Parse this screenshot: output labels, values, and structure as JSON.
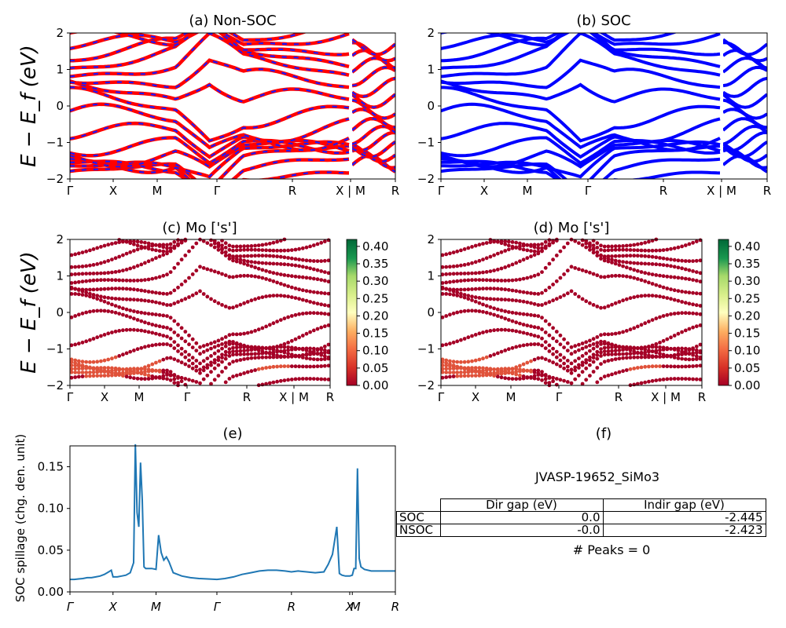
{
  "figure": {
    "panel_titles": {
      "a": "(a) Non-SOC",
      "b": "(b) SOC",
      "c": "(c)  Mo ['s']",
      "d": "(d) Mo ['s']",
      "e": "(e)",
      "f": "(f)"
    },
    "band_ylabel": "E − E_f (eV)",
    "spill_ylabel": "SOC spillage (chg. den. unit)",
    "band_yticks": [
      "2",
      "1",
      "0",
      "−1",
      "−2"
    ],
    "kpath_labels": [
      "Γ",
      "X",
      "M",
      "Γ",
      "R",
      "X | M",
      "R"
    ],
    "spill_kpath_labels": [
      "Γ",
      "X",
      "M",
      "Γ",
      "R",
      "X",
      "M",
      "R"
    ],
    "spill_yticks": [
      "0.15",
      "0.10",
      "0.05",
      "0.00"
    ],
    "colorbar_ticks": [
      "0.40",
      "0.35",
      "0.30",
      "0.25",
      "0.20",
      "0.15",
      "0.10",
      "0.05",
      "0.00"
    ],
    "colors": {
      "nonsoc_band": "#ff0000",
      "nonsoc_dash": "#1a1aff",
      "soc_band": "#0000ff",
      "spill_line": "#1f77b4"
    }
  },
  "info": {
    "material_id": "JVASP-19652_SiMo3",
    "table": {
      "headers": [
        "Dir gap (eV)",
        "Indir gap (eV)"
      ],
      "rows": [
        {
          "label": "SOC",
          "dir": "0.0",
          "indir": "-2.445"
        },
        {
          "label": "NSOC",
          "dir": "-0.0",
          "indir": "-2.423"
        }
      ]
    },
    "peaks_text": "# Peaks = 0"
  },
  "chart_data": [
    {
      "id": "a",
      "type": "line",
      "title": "(a) Non-SOC",
      "ylabel": "E − E_f (eV)",
      "ylim": [
        -2,
        2
      ],
      "xticks": [
        "Γ",
        "X",
        "M",
        "Γ",
        "R",
        "X | M",
        "R"
      ],
      "tick_positions": [
        0,
        0.5,
        1.0,
        1.707,
        2.573,
        3.28,
        3.78
      ]
    },
    {
      "id": "b",
      "type": "line",
      "title": "(b) SOC",
      "ylabel": "",
      "ylim": [
        -2,
        2
      ],
      "xticks": [
        "Γ",
        "X",
        "M",
        "Γ",
        "R",
        "X | M",
        "R"
      ],
      "tick_positions": [
        0,
        0.5,
        1.0,
        1.707,
        2.573,
        3.28,
        3.78
      ]
    },
    {
      "id": "c",
      "type": "scatter",
      "title": "(c)  Mo ['s']",
      "ylabel": "E − E_f (eV)",
      "ylim": [
        -2,
        2
      ],
      "colorbar_range": [
        0,
        0.42
      ],
      "xticks": [
        "Γ",
        "X",
        "M",
        "Γ",
        "R",
        "X | M",
        "R"
      ]
    },
    {
      "id": "d",
      "type": "scatter",
      "title": "(d) Mo ['s']",
      "ylabel": "",
      "ylim": [
        -2,
        2
      ],
      "colorbar_range": [
        0,
        0.42
      ],
      "xticks": [
        "Γ",
        "X",
        "M",
        "Γ",
        "R",
        "X | M",
        "R"
      ]
    },
    {
      "id": "e",
      "type": "line",
      "title": "(e)",
      "ylabel": "SOC spillage (chg. den. unit)",
      "ylim": [
        0,
        0.175
      ],
      "xticks": [
        "Γ",
        "X",
        "M",
        "Γ",
        "R",
        "X",
        "M",
        "R"
      ],
      "x": [
        0.0,
        0.05,
        0.1,
        0.15,
        0.2,
        0.25,
        0.3,
        0.35,
        0.4,
        0.45,
        0.48,
        0.5,
        0.55,
        0.6,
        0.65,
        0.7,
        0.74,
        0.76,
        0.78,
        0.8,
        0.82,
        0.84,
        0.86,
        0.88,
        0.9,
        0.95,
        1.0,
        1.03,
        1.06,
        1.09,
        1.12,
        1.15,
        1.2,
        1.3,
        1.4,
        1.5,
        1.6,
        1.707,
        1.8,
        1.9,
        2.0,
        2.1,
        2.2,
        2.3,
        2.4,
        2.5,
        2.573,
        2.65,
        2.75,
        2.85,
        2.95,
        3.0,
        3.05,
        3.1,
        3.13,
        3.16,
        3.2,
        3.25,
        3.28,
        3.3,
        3.32,
        3.34,
        3.36,
        3.38,
        3.42,
        3.5,
        3.6,
        3.7,
        3.78
      ],
      "y": [
        0.015,
        0.015,
        0.0155,
        0.016,
        0.017,
        0.017,
        0.018,
        0.019,
        0.021,
        0.024,
        0.026,
        0.018,
        0.018,
        0.019,
        0.02,
        0.023,
        0.035,
        0.177,
        0.095,
        0.078,
        0.155,
        0.11,
        0.03,
        0.028,
        0.028,
        0.028,
        0.027,
        0.068,
        0.047,
        0.038,
        0.042,
        0.036,
        0.023,
        0.019,
        0.017,
        0.016,
        0.0155,
        0.015,
        0.016,
        0.018,
        0.021,
        0.023,
        0.025,
        0.026,
        0.026,
        0.025,
        0.024,
        0.025,
        0.024,
        0.023,
        0.024,
        0.033,
        0.045,
        0.078,
        0.022,
        0.02,
        0.019,
        0.019,
        0.02,
        0.028,
        0.028,
        0.148,
        0.04,
        0.03,
        0.027,
        0.025,
        0.025,
        0.025,
        0.025
      ]
    },
    {
      "id": "f",
      "type": "table",
      "title": "(f)",
      "caption": "JVASP-19652_SiMo3",
      "columns": [
        "",
        "Dir gap (eV)",
        "Indir gap (eV)"
      ],
      "rows": [
        [
          "SOC",
          "0.0",
          "-2.445"
        ],
        [
          "NSOC",
          "-0.0",
          "-2.423"
        ]
      ],
      "note": "# Peaks = 0"
    }
  ]
}
